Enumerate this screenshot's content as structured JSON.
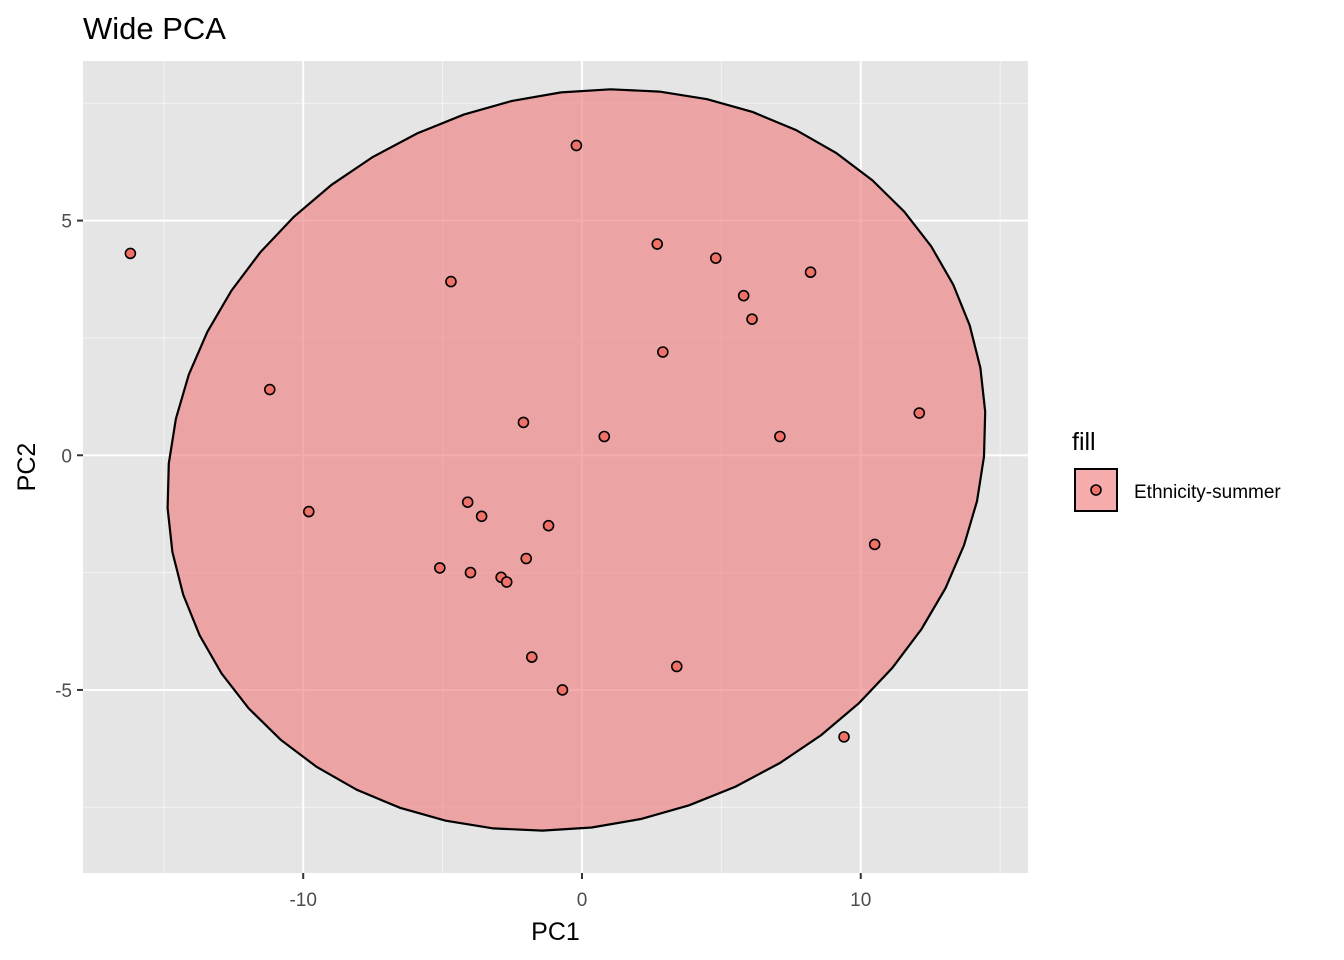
{
  "chart_data": {
    "type": "scatter",
    "title": "Wide PCA",
    "xlabel": "PC1",
    "ylabel": "PC2",
    "xlim": [
      -17.9,
      16.0
    ],
    "ylim": [
      -8.9,
      8.4
    ],
    "x_ticks": [
      -10,
      0,
      10
    ],
    "x_tick_labels": [
      "-10",
      "0",
      "10"
    ],
    "y_ticks": [
      -5,
      0,
      5
    ],
    "y_tick_labels": [
      "-5",
      "0",
      "5"
    ],
    "grid": true,
    "legend": {
      "title": "fill",
      "position": "right",
      "entries": [
        "Ethnicity-summer"
      ]
    },
    "colors": {
      "panel": "#e5e5e5",
      "grid": "#ffffff",
      "ellipse_fill": "#f08080",
      "ellipse_opacity": 0.65,
      "point_fill": "#f07167",
      "outline": "#000000"
    },
    "series": [
      {
        "name": "Ethnicity-summer",
        "points": [
          {
            "x": -16.2,
            "y": 4.3
          },
          {
            "x": -11.2,
            "y": 1.4
          },
          {
            "x": -9.8,
            "y": -1.2
          },
          {
            "x": -4.7,
            "y": 3.7
          },
          {
            "x": -2.1,
            "y": 0.7
          },
          {
            "x": -0.2,
            "y": 6.6
          },
          {
            "x": 0.8,
            "y": 0.4
          },
          {
            "x": 2.7,
            "y": 4.5
          },
          {
            "x": 2.9,
            "y": 2.2
          },
          {
            "x": 4.8,
            "y": 4.2
          },
          {
            "x": 5.8,
            "y": 3.4
          },
          {
            "x": 6.1,
            "y": 2.9
          },
          {
            "x": 8.2,
            "y": 3.9
          },
          {
            "x": 7.1,
            "y": 0.4
          },
          {
            "x": 12.1,
            "y": 0.9
          },
          {
            "x": 10.5,
            "y": -1.9
          },
          {
            "x": -4.1,
            "y": -1.0
          },
          {
            "x": -3.6,
            "y": -1.3
          },
          {
            "x": -1.2,
            "y": -1.5
          },
          {
            "x": -5.1,
            "y": -2.4
          },
          {
            "x": -4.0,
            "y": -2.5
          },
          {
            "x": -2.0,
            "y": -2.2
          },
          {
            "x": -2.9,
            "y": -2.6
          },
          {
            "x": -2.7,
            "y": -2.7
          },
          {
            "x": -1.8,
            "y": -4.3
          },
          {
            "x": 3.4,
            "y": -4.5
          },
          {
            "x": -0.7,
            "y": -5.0
          },
          {
            "x": 9.4,
            "y": -6.0
          }
        ]
      }
    ],
    "ellipse": {
      "center": [
        -0.2,
        -0.1
      ],
      "a": 14.7,
      "b": 7.85,
      "angle_deg": 4
    }
  }
}
